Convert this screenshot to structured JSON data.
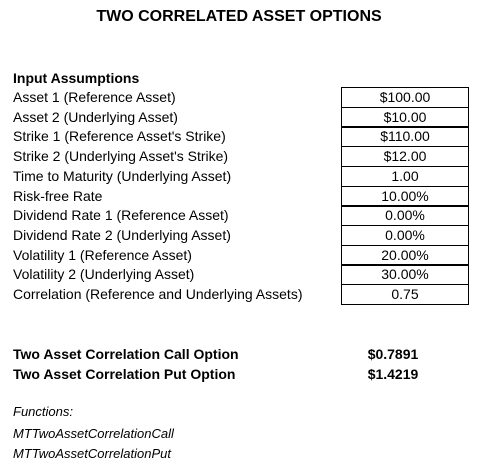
{
  "title": "TWO CORRELATED ASSET OPTIONS",
  "inputs": {
    "heading": "Input Assumptions",
    "rows": [
      [
        "Asset 1 (Reference Asset)",
        "$100.00"
      ],
      [
        "Asset 2 (Underlying Asset)",
        "$10.00"
      ],
      [
        "Strike 1 (Reference Asset's Strike)",
        "$110.00"
      ],
      [
        "Strike 2 (Underlying Asset's Strike)",
        "$12.00"
      ],
      [
        "Time to Maturity (Underlying Asset)",
        "1.00"
      ],
      [
        "Risk-free Rate",
        "10.00%"
      ],
      [
        "Dividend Rate 1 (Reference Asset)",
        "0.00%"
      ],
      [
        "Dividend Rate 2 (Underlying Asset)",
        "0.00%"
      ],
      [
        "Volatility 1 (Reference Asset)",
        "20.00%"
      ],
      [
        "Volatility 2 (Underlying Asset)",
        "30.00%"
      ],
      [
        "Correlation (Reference and Underlying Assets)",
        "0.75"
      ]
    ]
  },
  "results": [
    [
      "Two Asset Correlation Call Option",
      "$0.7891"
    ],
    [
      "Two Asset Correlation Put Option",
      "$1.4219"
    ]
  ],
  "functions": {
    "heading": "Functions:",
    "items": [
      "MTTwoAssetCorrelationCall",
      "MTTwoAssetCorrelationPut"
    ]
  }
}
